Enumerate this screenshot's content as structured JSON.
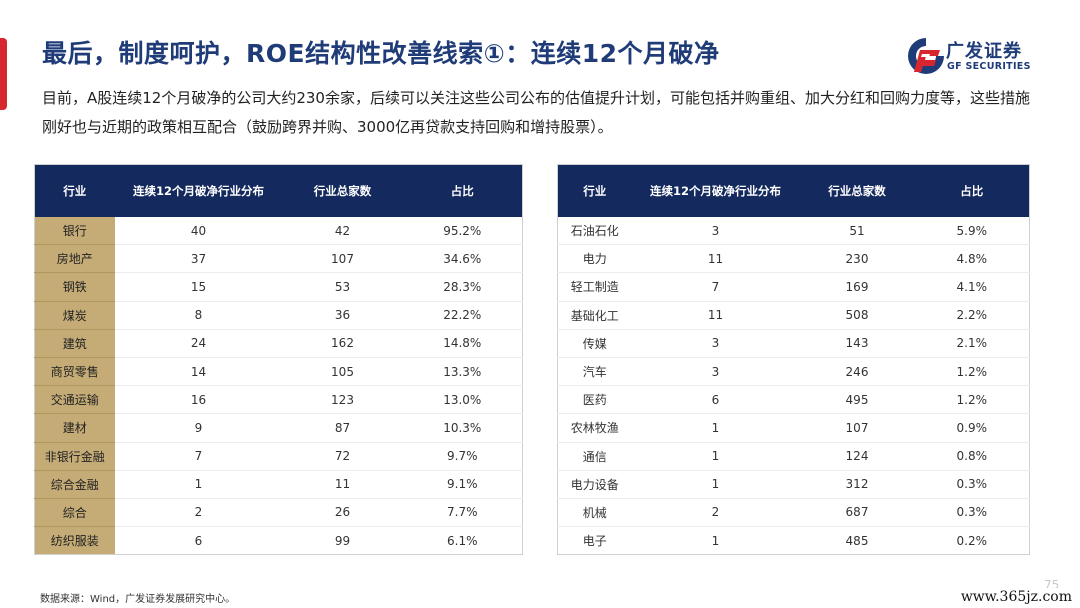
{
  "title": "最后，制度呵护，ROE结构性改善线索①：连续12个月破净",
  "logo": {
    "cn": "广发证券",
    "en": "GF SECURITIES"
  },
  "intro": "目前，A股连续12个月破净的公司大约230余家，后续可以关注这些公司公布的估值提升计划，可能包括并购重组、加大分红和回购力度等，这些措施刚好也与近期的政策相互配合（鼓励跨界并购、3000亿再贷款支持回购和增持股票）。",
  "columns": [
    "行业",
    "连续12个月破净行业分布",
    "行业总家数",
    "占比"
  ],
  "table_left": [
    [
      "银行",
      "40",
      "42",
      "95.2%"
    ],
    [
      "房地产",
      "37",
      "107",
      "34.6%"
    ],
    [
      "钢铁",
      "15",
      "53",
      "28.3%"
    ],
    [
      "煤炭",
      "8",
      "36",
      "22.2%"
    ],
    [
      "建筑",
      "24",
      "162",
      "14.8%"
    ],
    [
      "商贸零售",
      "14",
      "105",
      "13.3%"
    ],
    [
      "交通运输",
      "16",
      "123",
      "13.0%"
    ],
    [
      "建材",
      "9",
      "87",
      "10.3%"
    ],
    [
      "非银行金融",
      "7",
      "72",
      "9.7%"
    ],
    [
      "综合金融",
      "1",
      "11",
      "9.1%"
    ],
    [
      "综合",
      "2",
      "26",
      "7.7%"
    ],
    [
      "纺织服装",
      "6",
      "99",
      "6.1%"
    ]
  ],
  "table_right": [
    [
      "石油石化",
      "3",
      "51",
      "5.9%"
    ],
    [
      "电力",
      "11",
      "230",
      "4.8%"
    ],
    [
      "轻工制造",
      "7",
      "169",
      "4.1%"
    ],
    [
      "基础化工",
      "11",
      "508",
      "2.2%"
    ],
    [
      "传媒",
      "3",
      "143",
      "2.1%"
    ],
    [
      "汽车",
      "3",
      "246",
      "1.2%"
    ],
    [
      "医药",
      "6",
      "495",
      "1.2%"
    ],
    [
      "农林牧渔",
      "1",
      "107",
      "0.9%"
    ],
    [
      "通信",
      "1",
      "124",
      "0.8%"
    ],
    [
      "电力设备",
      "1",
      "312",
      "0.3%"
    ],
    [
      "机械",
      "2",
      "687",
      "0.3%"
    ],
    [
      "电子",
      "1",
      "485",
      "0.2%"
    ]
  ],
  "source": "数据来源：Wind，广发证券发展研究中心。",
  "page_number": "75",
  "watermark": "www.365jz.com",
  "colors": {
    "title": "#1f3c78",
    "header_bg": "#14295e",
    "category_bg": "#c5ac77",
    "accent": "#d7262d"
  }
}
